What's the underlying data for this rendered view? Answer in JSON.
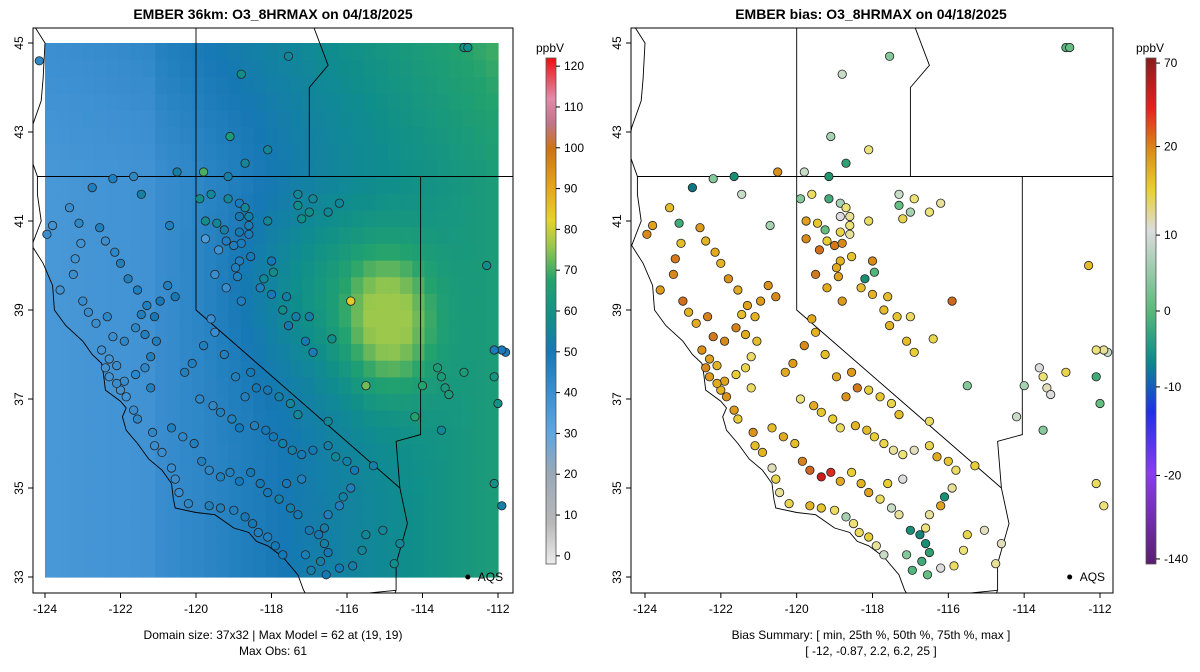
{
  "chart_data": [
    {
      "type": "heatmap",
      "title": "EMBER 36km: O3_8HRMAX on 04/18/2025",
      "xlim": [
        -124.2,
        -111.8
      ],
      "ylim": [
        32.6,
        45.4
      ],
      "x_ticks": [
        "-124",
        "-122",
        "-120",
        "-118",
        "-116",
        "-114",
        "-112"
      ],
      "y_ticks": [
        "33",
        "35",
        "37",
        "39",
        "41",
        "43",
        "45"
      ],
      "colorbar": {
        "unit": "ppbV",
        "min": -2,
        "max": 122,
        "ticks": [
          "0",
          "10",
          "20",
          "30",
          "40",
          "50",
          "60",
          "70",
          "80",
          "90",
          "100",
          "110",
          "120"
        ]
      },
      "caption_line1": "Domain size: 37x32 | Max Model = 62 at (19, 19)",
      "caption_line2": "Max Obs: 61",
      "aqs_label": "AQS"
    },
    {
      "type": "scatter",
      "title": "EMBER bias: O3_8HRMAX on 04/18/2025",
      "xlim": [
        -124.2,
        -111.8
      ],
      "ylim": [
        32.6,
        45.4
      ],
      "x_ticks": [
        "-124",
        "-122",
        "-120",
        "-118",
        "-116",
        "-114",
        "-112"
      ],
      "y_ticks": [
        "33",
        "35",
        "37",
        "39",
        "41",
        "43",
        "45"
      ],
      "colorbar": {
        "unit": "ppbV",
        "min": -145,
        "max": 73,
        "ticks": [
          "-140",
          "-20",
          "-10",
          "0",
          "10",
          "20",
          "70"
        ]
      },
      "caption_line1": "Bias Summary: [ min, 25th %, 50th %, 75th %, max ]",
      "caption_line2": "[ -12,   -0.87,   2.2,   6.2,   25 ]",
      "bias_summary": {
        "min": -12,
        "p25": -0.87,
        "p50": 2.2,
        "p75": 6.2,
        "max": 25
      },
      "aqs_label": "AQS"
    }
  ]
}
